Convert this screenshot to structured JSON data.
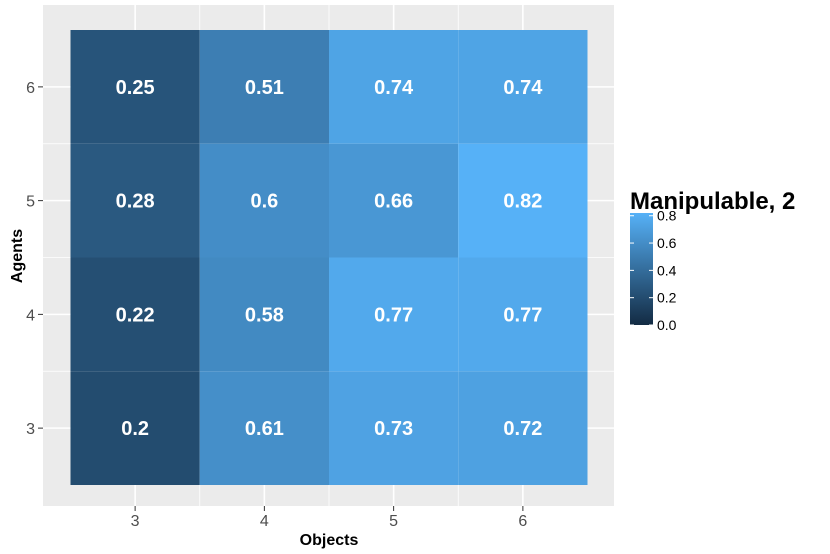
{
  "chart_data": {
    "type": "heatmap",
    "xlabel": "Objects",
    "ylabel": "Agents",
    "x_categories": [
      "3",
      "4",
      "5",
      "6"
    ],
    "y_categories": [
      "3",
      "4",
      "5",
      "6"
    ],
    "cells": [
      {
        "x": "3",
        "y": "6",
        "value": 0.25,
        "label": "0.25"
      },
      {
        "x": "4",
        "y": "6",
        "value": 0.51,
        "label": "0.51"
      },
      {
        "x": "5",
        "y": "6",
        "value": 0.74,
        "label": "0.74"
      },
      {
        "x": "6",
        "y": "6",
        "value": 0.74,
        "label": "0.74"
      },
      {
        "x": "3",
        "y": "5",
        "value": 0.28,
        "label": "0.28"
      },
      {
        "x": "4",
        "y": "5",
        "value": 0.6,
        "label": "0.6"
      },
      {
        "x": "5",
        "y": "5",
        "value": 0.66,
        "label": "0.66"
      },
      {
        "x": "6",
        "y": "5",
        "value": 0.82,
        "label": "0.82"
      },
      {
        "x": "3",
        "y": "4",
        "value": 0.22,
        "label": "0.22"
      },
      {
        "x": "4",
        "y": "4",
        "value": 0.58,
        "label": "0.58"
      },
      {
        "x": "5",
        "y": "4",
        "value": 0.77,
        "label": "0.77"
      },
      {
        "x": "6",
        "y": "4",
        "value": 0.77,
        "label": "0.77"
      },
      {
        "x": "3",
        "y": "3",
        "value": 0.2,
        "label": "0.2"
      },
      {
        "x": "4",
        "y": "3",
        "value": 0.61,
        "label": "0.61"
      },
      {
        "x": "5",
        "y": "3",
        "value": 0.73,
        "label": "0.73"
      },
      {
        "x": "6",
        "y": "3",
        "value": 0.72,
        "label": "0.72"
      }
    ],
    "legend": {
      "title": "Manipulable, 2",
      "ticks": [
        "0.0",
        "0.2",
        "0.4",
        "0.6",
        "0.8"
      ],
      "range": [
        0.0,
        0.82
      ],
      "color_low": "#132B43",
      "color_high": "#56B1F7",
      "placement": "right"
    },
    "panel_background": "#EBEBEB",
    "grid": true
  }
}
